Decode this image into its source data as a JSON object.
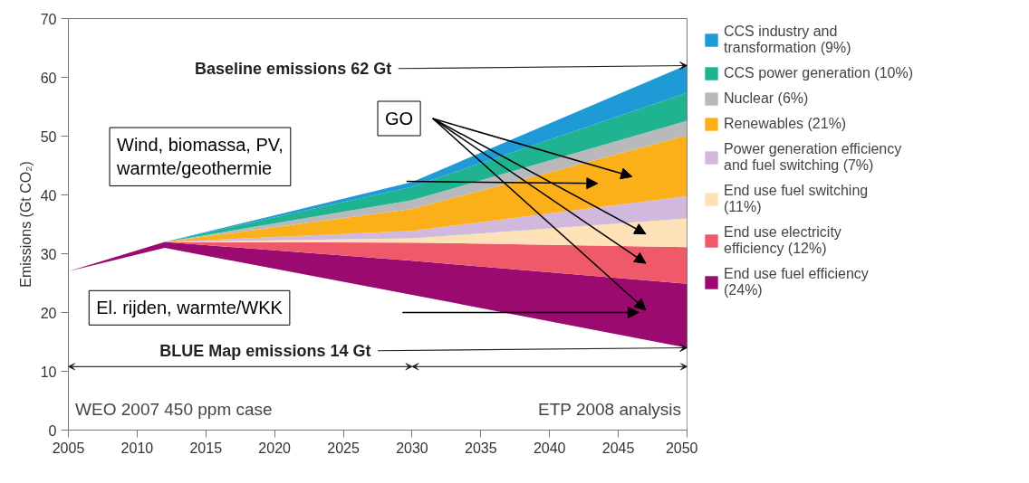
{
  "chart_data": {
    "type": "area",
    "stacked": true,
    "ylabel": "Emissions (Gt CO₂)",
    "x": [
      2005,
      2012,
      2030,
      2050
    ],
    "xlim": [
      2005,
      2050
    ],
    "xticks": [
      2005,
      2010,
      2015,
      2020,
      2025,
      2030,
      2035,
      2040,
      2045,
      2050
    ],
    "ylim": [
      0,
      70
    ],
    "yticks": [
      0,
      10,
      20,
      30,
      40,
      50,
      60,
      70
    ],
    "grid": false,
    "legend": "right",
    "series": [
      {
        "color": "#ffffff",
        "values": [
          27,
          31,
          23,
          14
        ]
      },
      {
        "name": "End use fuel efficiency (24%)",
        "color": "#9b0a6e",
        "values": [
          0,
          1,
          5.8,
          10.9
        ]
      },
      {
        "name": "End use electricity efficiency (12%)",
        "color": "#ef5a6a",
        "values": [
          0,
          0,
          3.1,
          6.2
        ]
      },
      {
        "name": "End use fuel switching (11%)",
        "color": "#fde2b8",
        "values": [
          0,
          0,
          0.7,
          4.9
        ]
      },
      {
        "name": "Power generation efficiency and fuel switching (7%)",
        "color": "#d1b9dd",
        "values": [
          0,
          0,
          1.3,
          3.8
        ]
      },
      {
        "name": "Renewables (21%)",
        "color": "#fbb01a",
        "values": [
          0,
          0,
          3.7,
          10.3
        ]
      },
      {
        "name": "Nuclear (6%)",
        "color": "#b9b9bb",
        "values": [
          0,
          0,
          1.5,
          2.5
        ]
      },
      {
        "name": "CCS power generation (10%)",
        "color": "#1fb391",
        "values": [
          0,
          0,
          2.3,
          4.8
        ]
      },
      {
        "name": "CCS industry and transformation (9%)",
        "color": "#1e9ad6",
        "values": [
          0,
          0,
          0.8,
          4.7
        ]
      }
    ],
    "annotations": [
      {
        "text": "Baseline emissions 62 Gt",
        "x": 2050,
        "y": 62
      },
      {
        "text": "BLUE Map emissions 14 Gt",
        "x": 2050,
        "y": 14
      },
      "GO",
      "Wind, biomassa, PV, warmte/geothermie",
      "El. rijden, warmte/WKK",
      "WEO 2007 450 ppm case",
      "ETP 2008 analysis"
    ]
  }
}
